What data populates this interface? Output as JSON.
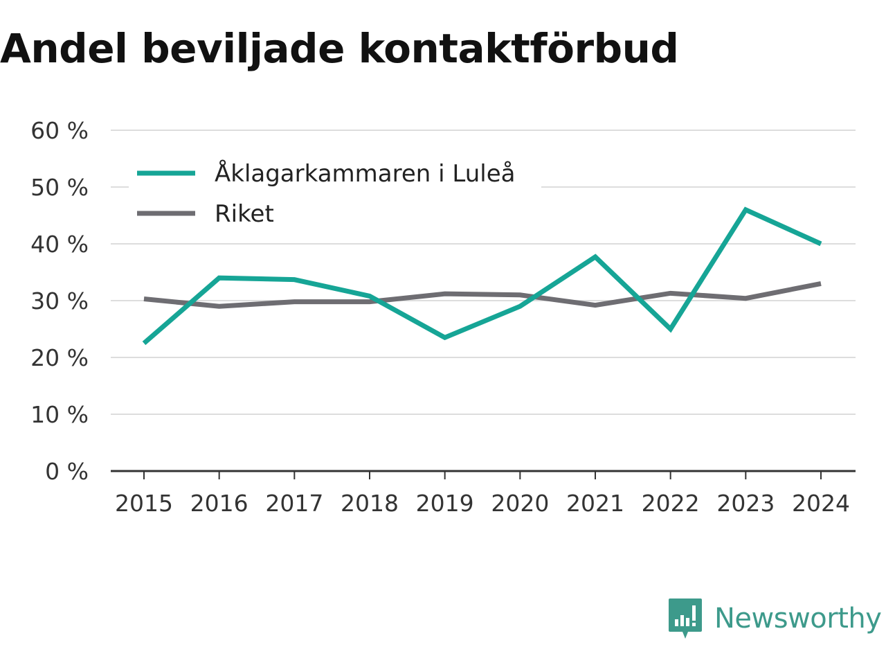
{
  "chart_data": {
    "type": "line",
    "title": "Andel beviljade kontaktförbud",
    "categories": [
      "2015",
      "2016",
      "2017",
      "2018",
      "2019",
      "2020",
      "2021",
      "2022",
      "2023",
      "2024"
    ],
    "series": [
      {
        "name": "Åklagarkammaren i Luleå",
        "color": "#16a596",
        "values": [
          22.5,
          34.0,
          33.7,
          30.8,
          23.5,
          29.0,
          37.7,
          25.0,
          46.0,
          40.0
        ]
      },
      {
        "name": "Riket",
        "color": "#6e6d72",
        "values": [
          30.3,
          29.0,
          29.8,
          29.8,
          31.2,
          31.0,
          29.2,
          31.3,
          30.4,
          33.0
        ]
      }
    ],
    "ylim": [
      0,
      60
    ],
    "yticks": [
      0,
      10,
      20,
      30,
      40,
      50,
      60
    ],
    "ytick_labels": [
      "0 %",
      "10 %",
      "20 %",
      "30 %",
      "40 %",
      "50 %",
      "60 %"
    ],
    "grid": true,
    "legend_position": "top-left",
    "xlabel": "",
    "ylabel": ""
  },
  "brand": {
    "name": "Newsworthy",
    "color": "#3d9a8b"
  }
}
